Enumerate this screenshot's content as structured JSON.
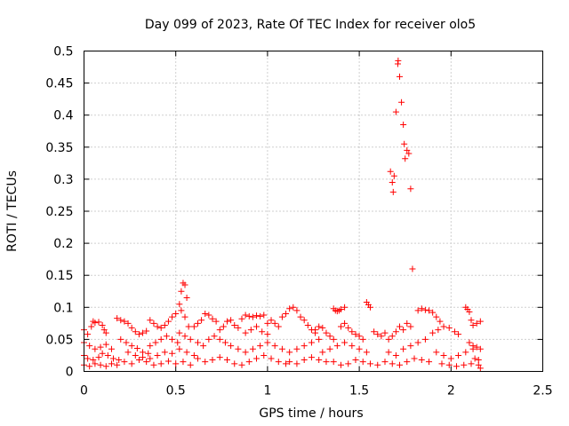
{
  "chart_data": {
    "type": "scatter",
    "title": "Day 099 of 2023, Rate Of TEC Index for receiver olo5",
    "xlabel": "GPS time / hours",
    "ylabel": "ROTI / TECUs",
    "xlim": [
      0,
      2.5
    ],
    "ylim": [
      0,
      0.5
    ],
    "xticks": [
      0,
      0.5,
      1,
      1.5,
      2,
      2.5
    ],
    "xtick_labels": [
      "0",
      "0.5",
      "1",
      "1.5",
      "2",
      "2.5"
    ],
    "yticks": [
      0,
      0.05,
      0.1,
      0.15,
      0.2,
      0.25,
      0.3,
      0.35,
      0.4,
      0.45,
      0.5
    ],
    "ytick_labels": [
      "0",
      "0.05",
      "0.1",
      "0.15",
      "0.2",
      "0.25",
      "0.3",
      "0.35",
      "0.4",
      "0.45",
      "0.5"
    ],
    "grid": true,
    "marker": "plus",
    "color": "#ff0000",
    "series": [
      {
        "points": [
          [
            0.0,
            0.065
          ],
          [
            0.02,
            0.058
          ],
          [
            0.04,
            0.07
          ],
          [
            0.05,
            0.078
          ],
          [
            0.06,
            0.076
          ],
          [
            0.08,
            0.077
          ],
          [
            0.1,
            0.072
          ],
          [
            0.11,
            0.065
          ],
          [
            0.12,
            0.06
          ],
          [
            0.0,
            0.045
          ],
          [
            0.03,
            0.04
          ],
          [
            0.06,
            0.035
          ],
          [
            0.09,
            0.038
          ],
          [
            0.12,
            0.042
          ],
          [
            0.15,
            0.035
          ],
          [
            0.0,
            0.025
          ],
          [
            0.02,
            0.02
          ],
          [
            0.05,
            0.018
          ],
          [
            0.08,
            0.022
          ],
          [
            0.1,
            0.028
          ],
          [
            0.13,
            0.025
          ],
          [
            0.16,
            0.02
          ],
          [
            0.19,
            0.018
          ],
          [
            0.0,
            0.01
          ],
          [
            0.03,
            0.008
          ],
          [
            0.06,
            0.012
          ],
          [
            0.09,
            0.01
          ],
          [
            0.12,
            0.008
          ],
          [
            0.15,
            0.012
          ],
          [
            0.18,
            0.01
          ],
          [
            0.18,
            0.083
          ],
          [
            0.2,
            0.08
          ],
          [
            0.22,
            0.078
          ],
          [
            0.24,
            0.075
          ],
          [
            0.26,
            0.068
          ],
          [
            0.28,
            0.062
          ],
          [
            0.3,
            0.058
          ],
          [
            0.32,
            0.06
          ],
          [
            0.34,
            0.063
          ],
          [
            0.2,
            0.05
          ],
          [
            0.23,
            0.045
          ],
          [
            0.26,
            0.04
          ],
          [
            0.29,
            0.036
          ],
          [
            0.32,
            0.03
          ],
          [
            0.35,
            0.028
          ],
          [
            0.36,
            0.08
          ],
          [
            0.38,
            0.075
          ],
          [
            0.4,
            0.07
          ],
          [
            0.42,
            0.068
          ],
          [
            0.44,
            0.072
          ],
          [
            0.46,
            0.078
          ],
          [
            0.48,
            0.085
          ],
          [
            0.5,
            0.09
          ],
          [
            0.36,
            0.04
          ],
          [
            0.39,
            0.045
          ],
          [
            0.42,
            0.05
          ],
          [
            0.45,
            0.055
          ],
          [
            0.48,
            0.05
          ],
          [
            0.51,
            0.045
          ],
          [
            0.22,
            0.015
          ],
          [
            0.26,
            0.012
          ],
          [
            0.3,
            0.018
          ],
          [
            0.34,
            0.015
          ],
          [
            0.38,
            0.01
          ],
          [
            0.42,
            0.012
          ],
          [
            0.46,
            0.016
          ],
          [
            0.5,
            0.012
          ],
          [
            0.24,
            0.03
          ],
          [
            0.28,
            0.025
          ],
          [
            0.32,
            0.022
          ],
          [
            0.36,
            0.02
          ],
          [
            0.4,
            0.025
          ],
          [
            0.44,
            0.03
          ],
          [
            0.48,
            0.028
          ],
          [
            0.52,
            0.105
          ],
          [
            0.53,
            0.125
          ],
          [
            0.54,
            0.138
          ],
          [
            0.55,
            0.135
          ],
          [
            0.56,
            0.115
          ],
          [
            0.53,
            0.095
          ],
          [
            0.55,
            0.085
          ],
          [
            0.57,
            0.07
          ],
          [
            0.52,
            0.06
          ],
          [
            0.55,
            0.055
          ],
          [
            0.58,
            0.05
          ],
          [
            0.52,
            0.035
          ],
          [
            0.56,
            0.03
          ],
          [
            0.6,
            0.025
          ],
          [
            0.54,
            0.015
          ],
          [
            0.58,
            0.01
          ],
          [
            0.6,
            0.07
          ],
          [
            0.62,
            0.075
          ],
          [
            0.64,
            0.08
          ],
          [
            0.66,
            0.09
          ],
          [
            0.68,
            0.088
          ],
          [
            0.7,
            0.082
          ],
          [
            0.72,
            0.078
          ],
          [
            0.62,
            0.045
          ],
          [
            0.65,
            0.04
          ],
          [
            0.68,
            0.05
          ],
          [
            0.71,
            0.055
          ],
          [
            0.74,
            0.05
          ],
          [
            0.77,
            0.045
          ],
          [
            0.62,
            0.02
          ],
          [
            0.66,
            0.015
          ],
          [
            0.7,
            0.018
          ],
          [
            0.74,
            0.022
          ],
          [
            0.78,
            0.018
          ],
          [
            0.82,
            0.012
          ],
          [
            0.86,
            0.01
          ],
          [
            0.74,
            0.065
          ],
          [
            0.76,
            0.07
          ],
          [
            0.78,
            0.078
          ],
          [
            0.8,
            0.08
          ],
          [
            0.82,
            0.072
          ],
          [
            0.84,
            0.068
          ],
          [
            0.86,
            0.082
          ],
          [
            0.88,
            0.088
          ],
          [
            0.9,
            0.086
          ],
          [
            0.92,
            0.085
          ],
          [
            0.94,
            0.087
          ],
          [
            0.96,
            0.086
          ],
          [
            0.98,
            0.088
          ],
          [
            0.8,
            0.04
          ],
          [
            0.84,
            0.035
          ],
          [
            0.88,
            0.03
          ],
          [
            0.92,
            0.035
          ],
          [
            0.96,
            0.04
          ],
          [
            1.0,
            0.045
          ],
          [
            0.88,
            0.06
          ],
          [
            0.91,
            0.065
          ],
          [
            0.94,
            0.07
          ],
          [
            0.97,
            0.062
          ],
          [
            1.0,
            0.058
          ],
          [
            0.9,
            0.015
          ],
          [
            0.94,
            0.02
          ],
          [
            0.98,
            0.025
          ],
          [
            1.02,
            0.02
          ],
          [
            1.06,
            0.015
          ],
          [
            1.1,
            0.012
          ],
          [
            1.0,
            0.075
          ],
          [
            1.02,
            0.08
          ],
          [
            1.04,
            0.075
          ],
          [
            1.06,
            0.07
          ],
          [
            1.08,
            0.085
          ],
          [
            1.1,
            0.09
          ],
          [
            1.12,
            0.098
          ],
          [
            1.14,
            0.1
          ],
          [
            1.16,
            0.095
          ],
          [
            1.18,
            0.085
          ],
          [
            1.2,
            0.08
          ],
          [
            1.22,
            0.072
          ],
          [
            1.24,
            0.065
          ],
          [
            1.26,
            0.06
          ],
          [
            1.04,
            0.04
          ],
          [
            1.08,
            0.035
          ],
          [
            1.12,
            0.03
          ],
          [
            1.16,
            0.035
          ],
          [
            1.2,
            0.04
          ],
          [
            1.24,
            0.045
          ],
          [
            1.28,
            0.05
          ],
          [
            1.12,
            0.015
          ],
          [
            1.16,
            0.012
          ],
          [
            1.2,
            0.018
          ],
          [
            1.24,
            0.022
          ],
          [
            1.28,
            0.018
          ],
          [
            1.32,
            0.015
          ],
          [
            1.26,
            0.065
          ],
          [
            1.28,
            0.07
          ],
          [
            1.3,
            0.068
          ],
          [
            1.32,
            0.06
          ],
          [
            1.34,
            0.055
          ],
          [
            1.36,
            0.05
          ],
          [
            1.36,
            0.098
          ],
          [
            1.37,
            0.095
          ],
          [
            1.38,
            0.094
          ],
          [
            1.39,
            0.095
          ],
          [
            1.4,
            0.097
          ],
          [
            1.42,
            0.1
          ],
          [
            1.4,
            0.07
          ],
          [
            1.42,
            0.075
          ],
          [
            1.44,
            0.068
          ],
          [
            1.46,
            0.062
          ],
          [
            1.48,
            0.058
          ],
          [
            1.5,
            0.055
          ],
          [
            1.52,
            0.05
          ],
          [
            1.3,
            0.03
          ],
          [
            1.34,
            0.035
          ],
          [
            1.38,
            0.04
          ],
          [
            1.42,
            0.045
          ],
          [
            1.46,
            0.04
          ],
          [
            1.5,
            0.035
          ],
          [
            1.54,
            0.03
          ],
          [
            1.36,
            0.015
          ],
          [
            1.4,
            0.01
          ],
          [
            1.44,
            0.012
          ],
          [
            1.48,
            0.018
          ],
          [
            1.52,
            0.015
          ],
          [
            1.56,
            0.012
          ],
          [
            1.6,
            0.01
          ],
          [
            1.54,
            0.108
          ],
          [
            1.55,
            0.104
          ],
          [
            1.56,
            0.1
          ],
          [
            1.58,
            0.062
          ],
          [
            1.6,
            0.058
          ],
          [
            1.62,
            0.055
          ],
          [
            1.64,
            0.06
          ],
          [
            1.67,
            0.312
          ],
          [
            1.68,
            0.295
          ],
          [
            1.685,
            0.28
          ],
          [
            1.69,
            0.305
          ],
          [
            1.7,
            0.405
          ],
          [
            1.71,
            0.48
          ],
          [
            1.712,
            0.485
          ],
          [
            1.72,
            0.46
          ],
          [
            1.73,
            0.42
          ],
          [
            1.74,
            0.385
          ],
          [
            1.745,
            0.355
          ],
          [
            1.75,
            0.332
          ],
          [
            1.76,
            0.345
          ],
          [
            1.77,
            0.34
          ],
          [
            1.78,
            0.285
          ],
          [
            1.79,
            0.16
          ],
          [
            1.66,
            0.05
          ],
          [
            1.68,
            0.055
          ],
          [
            1.7,
            0.062
          ],
          [
            1.72,
            0.07
          ],
          [
            1.74,
            0.065
          ],
          [
            1.76,
            0.075
          ],
          [
            1.78,
            0.07
          ],
          [
            1.66,
            0.03
          ],
          [
            1.7,
            0.025
          ],
          [
            1.74,
            0.035
          ],
          [
            1.78,
            0.04
          ],
          [
            1.82,
            0.045
          ],
          [
            1.86,
            0.05
          ],
          [
            1.64,
            0.015
          ],
          [
            1.68,
            0.012
          ],
          [
            1.72,
            0.01
          ],
          [
            1.76,
            0.015
          ],
          [
            1.8,
            0.02
          ],
          [
            1.84,
            0.018
          ],
          [
            1.88,
            0.015
          ],
          [
            1.82,
            0.095
          ],
          [
            1.84,
            0.098
          ],
          [
            1.86,
            0.096
          ],
          [
            1.88,
            0.095
          ],
          [
            1.9,
            0.092
          ],
          [
            1.92,
            0.085
          ],
          [
            1.94,
            0.078
          ],
          [
            1.9,
            0.06
          ],
          [
            1.93,
            0.065
          ],
          [
            1.96,
            0.07
          ],
          [
            1.99,
            0.068
          ],
          [
            2.02,
            0.062
          ],
          [
            2.04,
            0.058
          ],
          [
            1.92,
            0.03
          ],
          [
            1.96,
            0.025
          ],
          [
            2.0,
            0.02
          ],
          [
            2.04,
            0.025
          ],
          [
            2.08,
            0.03
          ],
          [
            2.12,
            0.035
          ],
          [
            1.95,
            0.012
          ],
          [
            1.99,
            0.01
          ],
          [
            2.03,
            0.008
          ],
          [
            2.07,
            0.01
          ],
          [
            2.11,
            0.012
          ],
          [
            2.15,
            0.01
          ],
          [
            2.08,
            0.1
          ],
          [
            2.09,
            0.097
          ],
          [
            2.1,
            0.093
          ],
          [
            2.11,
            0.08
          ],
          [
            2.12,
            0.072
          ],
          [
            2.14,
            0.075
          ],
          [
            2.16,
            0.078
          ],
          [
            2.1,
            0.045
          ],
          [
            2.12,
            0.04
          ],
          [
            2.14,
            0.038
          ],
          [
            2.16,
            0.035
          ],
          [
            2.13,
            0.02
          ],
          [
            2.15,
            0.018
          ],
          [
            2.16,
            0.005
          ]
        ]
      }
    ]
  }
}
